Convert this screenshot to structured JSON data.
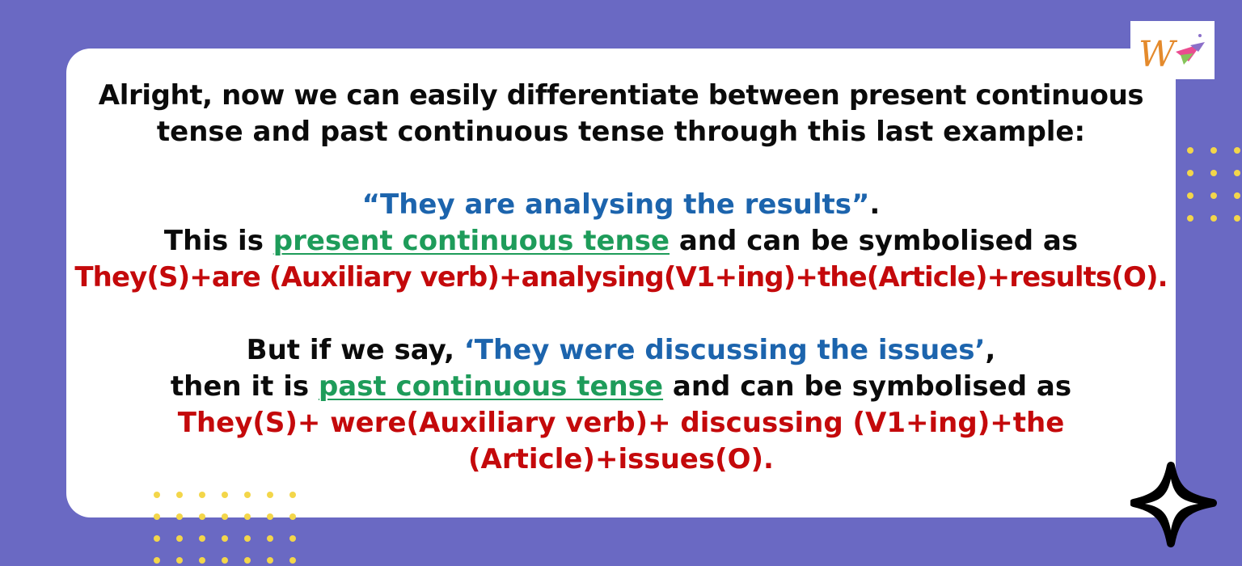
{
  "colors": {
    "background": "#6a69c3",
    "card": "#ffffff",
    "dots": "#f3d64a",
    "black_text": "#0b0b0b",
    "blue_text": "#1c64ad",
    "green_text": "#1e9c5a",
    "red_text": "#c4090b",
    "logo_orange": "#e48a2c",
    "logo_pink": "#ea4c90",
    "logo_green": "#86c45a",
    "logo_purple": "#8b6fc9"
  },
  "icons": {
    "logo": "w-brand-logo-icon",
    "decoration": "four-point-sparkle-icon"
  },
  "paragraph1": {
    "line1": "Alright, now we can easily differentiate between present continuous",
    "line2": "tense and past continuous tense through this last example:"
  },
  "example1": {
    "quote": "“They are analysing the results”",
    "end": ".",
    "prefix": "This is ",
    "tense_link": "present continuous tense",
    "suffix": " and can be symbolised as",
    "formula": "They(S)+are (Auxiliary verb)+analysing(V1+ing)+the(Article)+results(O)."
  },
  "example2": {
    "prefix": "But if we say, ",
    "quote": "‘They were discussing the issues’",
    "comma": ",",
    "line2_prefix": "then it is ",
    "tense_link": "past continuous tense",
    "line2_suffix": " and can be symbolised as",
    "formula_line1": "They(S)+ were(Auxiliary verb)+ discussing (V1+ing)+the",
    "formula_line2": "(Article)+issues(O)."
  }
}
